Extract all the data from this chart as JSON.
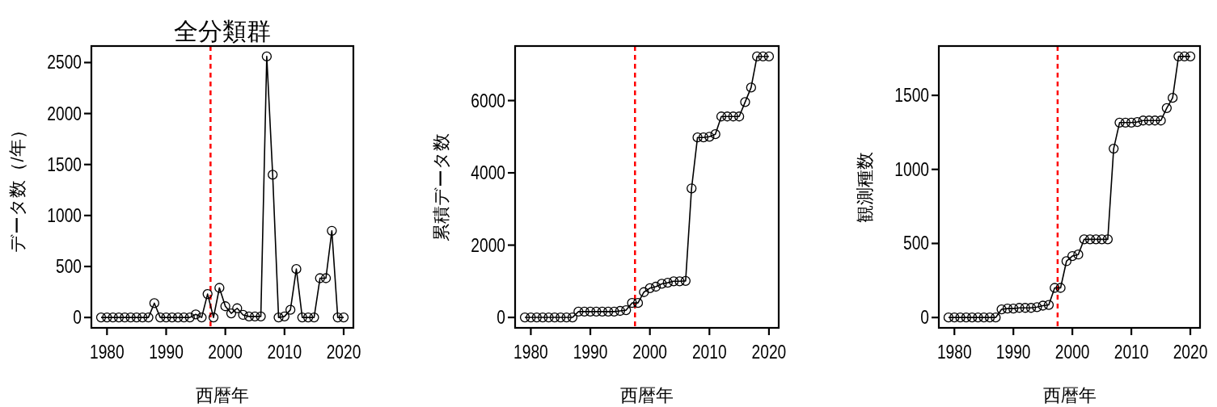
{
  "chart_data": [
    {
      "type": "line",
      "title": "全分類群",
      "xlabel": "西暦年",
      "ylabel": "データ数（/年）",
      "marker": "circle",
      "xlim": [
        1977.36,
        2021.64
      ],
      "ylim": [
        -102,
        2662
      ],
      "xticks": [
        1980,
        1990,
        2000,
        2010,
        2020
      ],
      "yticks": [
        0,
        500,
        1000,
        1500,
        2000,
        2500
      ],
      "x": [
        1979,
        1980,
        1981,
        1982,
        1983,
        1984,
        1985,
        1986,
        1987,
        1988,
        1989,
        1990,
        1991,
        1992,
        1993,
        1994,
        1995,
        1996,
        1997,
        1998,
        1999,
        2000,
        2001,
        2002,
        2003,
        2004,
        2005,
        2006,
        2007,
        2008,
        2009,
        2010,
        2011,
        2012,
        2013,
        2014,
        2015,
        2016,
        2017,
        2018,
        2019,
        2020
      ],
      "series": [
        {
          "color": "#000000",
          "values": [
            0,
            0,
            0,
            0,
            0,
            0,
            0,
            0,
            0,
            140,
            0,
            0,
            0,
            0,
            0,
            0,
            30,
            0,
            230,
            0,
            290,
            110,
            40,
            90,
            25,
            10,
            10,
            10,
            2560,
            1400,
            0,
            10,
            75,
            475,
            0,
            0,
            0,
            385,
            385,
            850,
            0,
            0
          ]
        }
      ],
      "ref_lines": [
        {
          "axis": "x",
          "value": 1997.5,
          "color": "#ff0000",
          "line_style": "dashed"
        }
      ]
    },
    {
      "type": "line",
      "xlabel": "西暦年",
      "ylabel": "累積データ数",
      "marker": "circle",
      "xlim": [
        1977.36,
        2021.64
      ],
      "ylim": [
        -289,
        7509
      ],
      "xticks": [
        1980,
        1990,
        2000,
        2010,
        2020
      ],
      "yticks": [
        0,
        2000,
        4000,
        6000
      ],
      "x": [
        1979,
        1980,
        1981,
        1982,
        1983,
        1984,
        1985,
        1986,
        1987,
        1988,
        1989,
        1990,
        1991,
        1992,
        1993,
        1994,
        1995,
        1996,
        1997,
        1998,
        1999,
        2000,
        2001,
        2002,
        2003,
        2004,
        2005,
        2006,
        2007,
        2008,
        2009,
        2010,
        2011,
        2012,
        2013,
        2014,
        2015,
        2016,
        2017,
        2018,
        2019,
        2020
      ],
      "series": [
        {
          "color": "#000000",
          "values": [
            0,
            0,
            0,
            0,
            0,
            0,
            0,
            0,
            0,
            160,
            160,
            160,
            160,
            160,
            160,
            160,
            180,
            200,
            400,
            400,
            700,
            810,
            850,
            930,
            960,
            1000,
            1000,
            1010,
            3570,
            4980,
            4980,
            5000,
            5070,
            5560,
            5560,
            5560,
            5560,
            5960,
            6360,
            7220,
            7220,
            7220
          ]
        }
      ],
      "ref_lines": [
        {
          "axis": "x",
          "value": 1997.5,
          "color": "#ff0000",
          "line_style": "dashed"
        }
      ]
    },
    {
      "type": "line",
      "xlabel": "西暦年",
      "ylabel": "観測種数",
      "marker": "circle",
      "xlim": [
        1977.36,
        2021.64
      ],
      "ylim": [
        -70,
        1833
      ],
      "xticks": [
        1980,
        1990,
        2000,
        2010,
        2020
      ],
      "yticks": [
        0,
        500,
        1000,
        1500
      ],
      "x": [
        1979,
        1980,
        1981,
        1982,
        1983,
        1984,
        1985,
        1986,
        1987,
        1988,
        1989,
        1990,
        1991,
        1992,
        1993,
        1994,
        1995,
        1996,
        1997,
        1998,
        1999,
        2000,
        2001,
        2002,
        2003,
        2004,
        2005,
        2006,
        2007,
        2008,
        2009,
        2010,
        2011,
        2012,
        2013,
        2014,
        2015,
        2016,
        2017,
        2018,
        2019,
        2020
      ],
      "series": [
        {
          "color": "#000000",
          "values": [
            0,
            0,
            0,
            0,
            0,
            0,
            0,
            0,
            0,
            55,
            60,
            60,
            65,
            65,
            65,
            70,
            80,
            85,
            200,
            200,
            380,
            415,
            425,
            528,
            528,
            528,
            528,
            528,
            1140,
            1316,
            1316,
            1316,
            1320,
            1330,
            1330,
            1330,
            1330,
            1414,
            1483,
            1763,
            1763,
            1763
          ]
        }
      ],
      "ref_lines": [
        {
          "axis": "x",
          "value": 1997.5,
          "color": "#ff0000",
          "line_style": "dashed"
        }
      ]
    }
  ]
}
